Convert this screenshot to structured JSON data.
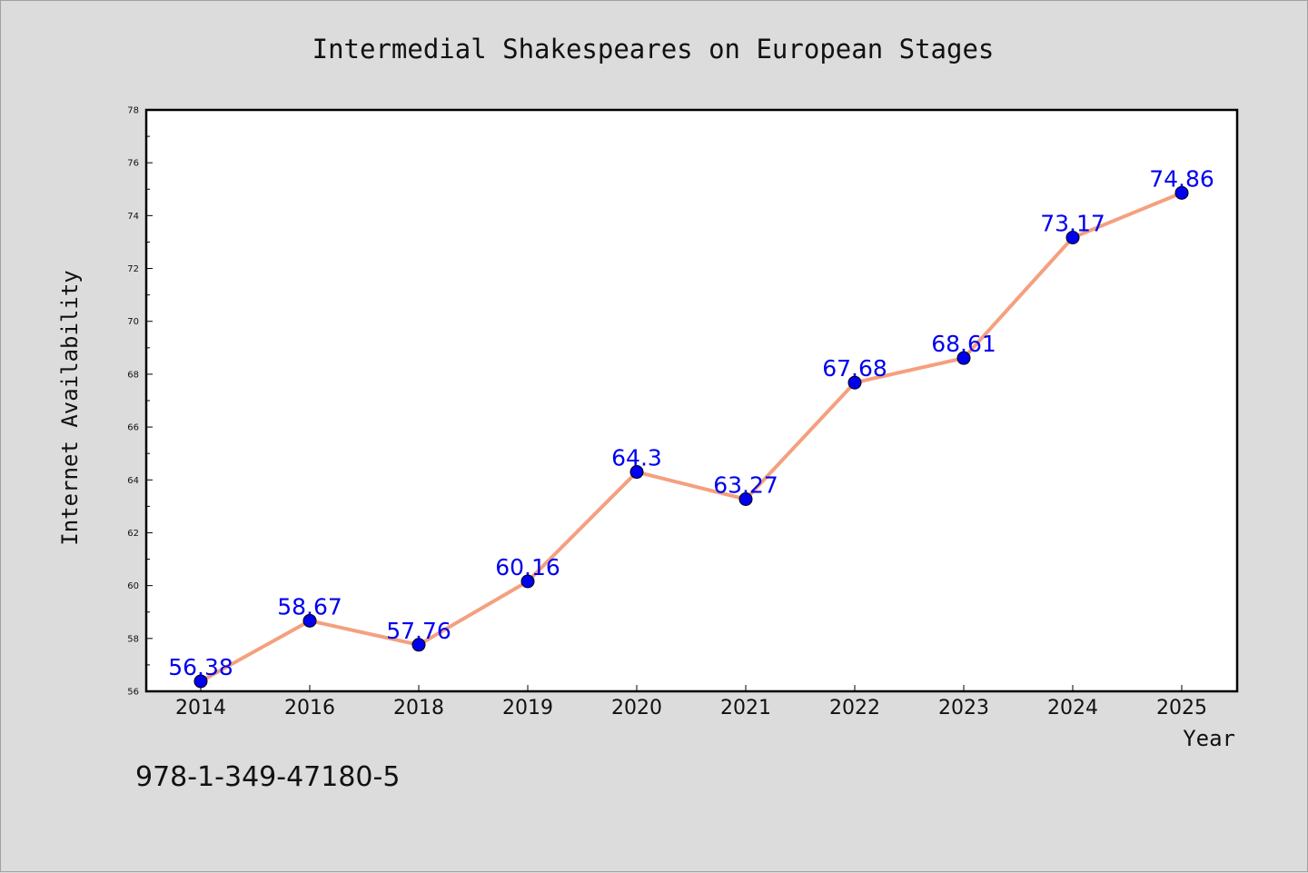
{
  "chart_data": {
    "type": "line",
    "title": "Intermedial Shakespeares on European Stages",
    "xlabel": "Year",
    "ylabel": "Internet Availability",
    "categories": [
      "2014",
      "2016",
      "2018",
      "2019",
      "2020",
      "2021",
      "2022",
      "2023",
      "2024",
      "2025"
    ],
    "series": [
      {
        "values": [
          56.38,
          58.67,
          57.76,
          60.16,
          64.3,
          63.27,
          67.68,
          68.61,
          73.17,
          74.86
        ],
        "labels": [
          "56.38",
          "58.67",
          "57.76",
          "60.16",
          "64.3",
          "63.27",
          "67.68",
          "68.61",
          "73.17",
          "74.86"
        ]
      }
    ],
    "ylim": [
      56,
      78
    ],
    "yticks": [
      56,
      58,
      60,
      62,
      64,
      66,
      68,
      70,
      72,
      74,
      76,
      78
    ],
    "grid": false,
    "line_color": "#f4a07f",
    "marker_color": "#0000ee",
    "label_color": "#0000ee"
  },
  "footer": {
    "isbn": "978-1-349-47180-5"
  }
}
